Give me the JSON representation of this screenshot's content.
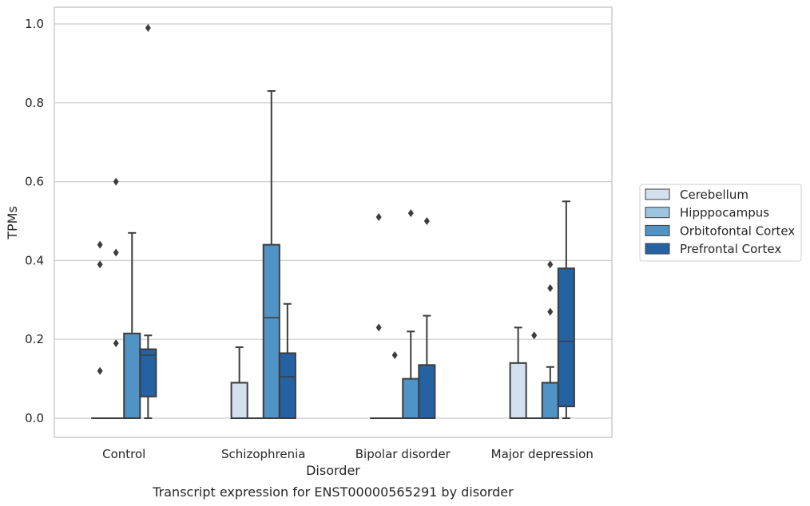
{
  "chart_data": {
    "type": "box",
    "xlabel": "Disorder",
    "ylabel": "TPMs",
    "caption": "Transcript expression for ENST00000565291 by disorder",
    "ylim": [
      -0.047,
      1.04
    ],
    "yticks": [
      "0.0",
      "0.2",
      "0.4",
      "0.6",
      "0.8",
      "1.0"
    ],
    "grid": "horizontal",
    "legend_position": "right",
    "categories": [
      "Control",
      "Schizophrenia",
      "Bipolar disorder",
      "Major depression"
    ],
    "series": [
      {
        "name": "Cerebellum",
        "color": "#d2e0f0",
        "stats": [
          {
            "whislo": 0,
            "q1": 0,
            "median": 0,
            "q3": 0,
            "whishi": 0,
            "fliers": [
              0.12,
              0.39,
              0.44
            ]
          },
          {
            "whislo": 0,
            "q1": 0,
            "median": 0,
            "q3": 0.09,
            "whishi": 0.18,
            "fliers": []
          },
          {
            "whislo": 0,
            "q1": 0,
            "median": 0,
            "q3": 0,
            "whishi": 0,
            "fliers": [
              0.23,
              0.51
            ]
          },
          {
            "whislo": 0,
            "q1": 0,
            "median": 0,
            "q3": 0.14,
            "whishi": 0.23,
            "fliers": []
          }
        ]
      },
      {
        "name": "Hipppocampus",
        "color": "#9dc4de",
        "stats": [
          {
            "whislo": 0,
            "q1": 0,
            "median": 0,
            "q3": 0,
            "whishi": 0,
            "fliers": [
              0.19,
              0.42,
              0.6
            ]
          },
          {
            "whislo": 0,
            "q1": 0,
            "median": 0,
            "q3": 0,
            "whishi": 0,
            "fliers": []
          },
          {
            "whislo": 0,
            "q1": 0,
            "median": 0,
            "q3": 0,
            "whishi": 0,
            "fliers": [
              0.16
            ]
          },
          {
            "whislo": 0,
            "q1": 0,
            "median": 0,
            "q3": 0,
            "whishi": 0,
            "fliers": [
              0.21
            ]
          }
        ]
      },
      {
        "name": "Orbitofontal Cortex",
        "color": "#5093c6",
        "stats": [
          {
            "whislo": 0,
            "q1": 0,
            "median": 0,
            "q3": 0.215,
            "whishi": 0.47,
            "fliers": []
          },
          {
            "whislo": 0,
            "q1": 0,
            "median": 0.255,
            "q3": 0.44,
            "whishi": 0.83,
            "fliers": []
          },
          {
            "whislo": 0,
            "q1": 0,
            "median": 0,
            "q3": 0.1,
            "whishi": 0.22,
            "fliers": [
              0.52
            ]
          },
          {
            "whislo": 0,
            "q1": 0,
            "median": 0,
            "q3": 0.09,
            "whishi": 0.13,
            "fliers": [
              0.27,
              0.33,
              0.39
            ]
          }
        ]
      },
      {
        "name": "Prefrontal Cortex",
        "color": "#2562a3",
        "stats": [
          {
            "whislo": 0,
            "q1": 0.055,
            "median": 0.16,
            "q3": 0.175,
            "whishi": 0.21,
            "fliers": [
              0.99
            ]
          },
          {
            "whislo": 0,
            "q1": 0,
            "median": 0.105,
            "q3": 0.165,
            "whishi": 0.29,
            "fliers": []
          },
          {
            "whislo": 0,
            "q1": 0,
            "median": 0,
            "q3": 0.135,
            "whishi": 0.26,
            "fliers": [
              0.5
            ]
          },
          {
            "whislo": 0,
            "q1": 0.03,
            "median": 0.195,
            "q3": 0.38,
            "whishi": 0.55,
            "fliers": []
          }
        ]
      }
    ]
  }
}
